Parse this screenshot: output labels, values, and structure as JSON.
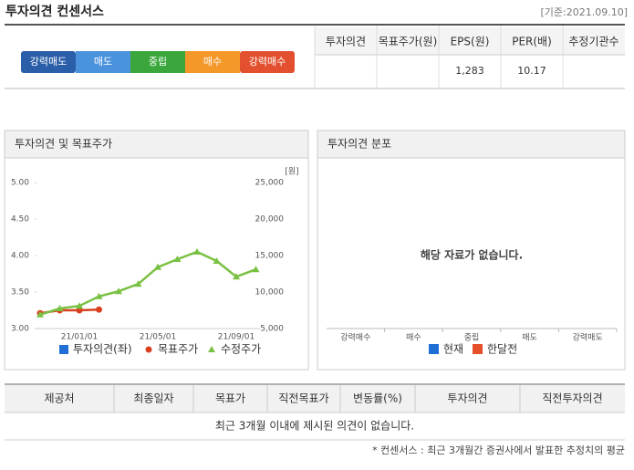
{
  "header": {
    "title": "투자의견 컨센서스",
    "date": "[기준:2021.09.10]"
  },
  "opinion_scale": [
    {
      "label": "강력매도",
      "color": "#2b5ea8"
    },
    {
      "label": "매도",
      "color": "#4b92dc"
    },
    {
      "label": "중립",
      "color": "#3aa63c"
    },
    {
      "label": "매수",
      "color": "#f5982a"
    },
    {
      "label": "강력매수",
      "color": "#e3502f"
    }
  ],
  "consensus_table": {
    "columns": [
      "투자의견",
      "목표주가(원)",
      "EPS(원)",
      "PER(배)",
      "추정기관수"
    ],
    "row": [
      null,
      null,
      "1,283",
      "10.17",
      null
    ]
  },
  "chart_data": {
    "type": "line",
    "title": "투자의견 및 목표주가",
    "categories": [
      null,
      null,
      "21/01/01",
      null,
      null,
      null,
      "21/05/01",
      null,
      null,
      null,
      "21/09/01",
      null
    ],
    "series": [
      {
        "name": "투자의견(좌)",
        "color": "#1f6fd6",
        "marker": "square",
        "axis": "y",
        "values": [
          null,
          null,
          null,
          null,
          null,
          null,
          null,
          null,
          null,
          null,
          null,
          null
        ]
      },
      {
        "name": "목표주가",
        "color": "#d9401f",
        "marker": "circle",
        "axis": "y2",
        "values": [
          7100,
          7500,
          7500,
          7600,
          null,
          null,
          null,
          null,
          null,
          null,
          null,
          null
        ]
      },
      {
        "name": "수정주가",
        "color": "#7ac143",
        "marker": "triangle",
        "axis": "y2",
        "values": [
          6900,
          7750,
          8100,
          9400,
          10100,
          11100,
          13400,
          14500,
          15500,
          14250,
          12100,
          13100
        ]
      }
    ],
    "ylim": [
      3,
      5
    ],
    "yticks": [
      {
        "value": 3,
        "label": "3.00"
      },
      {
        "value": 3.5,
        "label": "3.50"
      },
      {
        "value": 4,
        "label": "4.00"
      },
      {
        "value": 4.5,
        "label": "4.50"
      },
      {
        "value": 5,
        "label": "5.00"
      }
    ],
    "y2lim": [
      5000,
      25000
    ],
    "y2ticks": [
      {
        "value": 5000,
        "label": "5,000"
      },
      {
        "value": 10000,
        "label": "10,000"
      },
      {
        "value": 15000,
        "label": "15,000"
      },
      {
        "value": 20000,
        "label": "20,000"
      },
      {
        "value": 25000,
        "label": "25,000"
      }
    ],
    "y2_unit": "[원]",
    "grid": false
  },
  "distribution": {
    "title": "투자의견 분포",
    "message": "해당 자료가 없습니다.",
    "categories": [
      "강력매수",
      "매수",
      "중립",
      "매도",
      "강력매도"
    ],
    "legend": [
      {
        "name": "현재",
        "color": "#1f6fd6"
      },
      {
        "name": "한달전",
        "color": "#e5502b"
      }
    ]
  },
  "opinions_table": {
    "columns": [
      "제공처",
      "최종일자",
      "목표가",
      "직전목표가",
      "변동률(%)",
      "투자의견",
      "직전투자의견"
    ],
    "message": "최근 3개월 이내에 제시된 의견이 없습니다."
  },
  "footnote": "* 컨센서스 : 최근 3개월간 증권사에서 발표한 추정치의 평균"
}
